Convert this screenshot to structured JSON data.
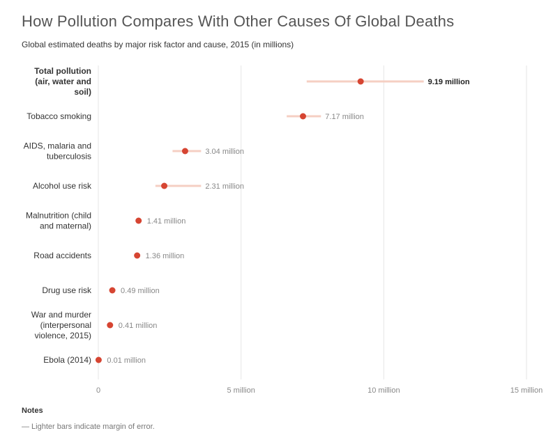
{
  "chart_data": {
    "type": "scatter",
    "title": "How Pollution Compares With Other Causes Of Global Deaths",
    "subtitle": "Global estimated deaths by major risk factor and cause, 2015 (in millions)",
    "categories": [
      "Total pollution (air, water and soil)",
      "Tobacco smoking",
      "AIDS, malaria and tuberculosis",
      "Alcohol use risk",
      "Malnutrition (child and maternal)",
      "Road accidents",
      "Drug use risk",
      "War and murder (interpersonal violence, 2015)",
      "Ebola (2014)"
    ],
    "highlighted": [
      true,
      false,
      false,
      false,
      false,
      false,
      false,
      false,
      false
    ],
    "values": [
      9.19,
      7.17,
      3.04,
      2.31,
      1.41,
      1.36,
      0.49,
      0.41,
      0.01
    ],
    "value_labels": [
      "9.19 million",
      "7.17 million",
      "3.04 million",
      "2.31 million",
      "1.41 million",
      "1.36 million",
      "0.49 million",
      "0.41 million",
      "0.01 million"
    ],
    "error_low": [
      7.3,
      6.6,
      2.6,
      2.0,
      null,
      null,
      null,
      null,
      null
    ],
    "error_high": [
      11.4,
      7.8,
      3.6,
      3.6,
      null,
      null,
      null,
      null,
      null
    ],
    "xlim": [
      0,
      15
    ],
    "xticks": [
      0,
      5,
      10,
      15
    ],
    "xtick_labels": [
      "0",
      "5 million",
      "10 million",
      "15 million"
    ],
    "grid": true,
    "colors": {
      "point": "#d64532",
      "error_bar": "#f5cfc3",
      "grid": "#e6e6e6"
    }
  },
  "notes": {
    "heading": "Notes",
    "text": "— Lighter bars indicate margin of error."
  }
}
